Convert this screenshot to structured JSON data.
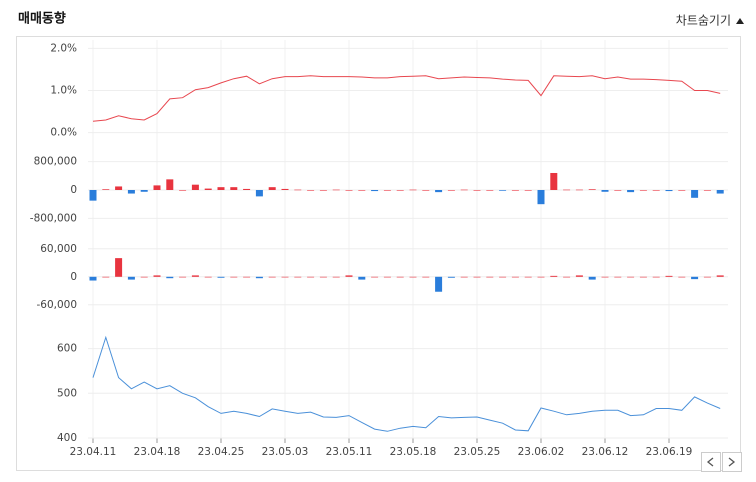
{
  "title": "매매동향",
  "toggle_label": "차트숨기기",
  "chart_data": [
    {
      "type": "line",
      "color": "#e8474f",
      "grid": true,
      "ylim": [
        -0.2,
        2.2
      ],
      "yticks": [
        {
          "value": 2,
          "label": "2.0%"
        },
        {
          "value": 1,
          "label": "1.0%"
        },
        {
          "value": 0,
          "label": "0.0%"
        }
      ],
      "values": [
        0.27,
        0.3,
        0.4,
        0.33,
        0.3,
        0.45,
        0.8,
        0.83,
        1.02,
        1.07,
        1.18,
        1.28,
        1.34,
        1.16,
        1.28,
        1.33,
        1.33,
        1.35,
        1.33,
        1.33,
        1.33,
        1.32,
        1.3,
        1.3,
        1.33,
        1.34,
        1.35,
        1.28,
        1.3,
        1.32,
        1.31,
        1.3,
        1.27,
        1.25,
        1.24,
        0.88,
        1.35,
        1.34,
        1.33,
        1.35,
        1.28,
        1.32,
        1.27,
        1.27,
        1.26,
        1.24,
        1.22,
        1.0,
        1.0,
        0.93
      ]
    },
    {
      "type": "bar",
      "up_color": "#e8343f",
      "down_color": "#2a7ddb",
      "grid": true,
      "ylim": [
        -1100000,
        1100000
      ],
      "yticks": [
        {
          "value": 800000,
          "label": "800,000"
        },
        0,
        {
          "value": -800000,
          "label": "-800,000"
        }
      ],
      "values": [
        -300000,
        20000,
        100000,
        -100000,
        -50000,
        130000,
        300000,
        0,
        150000,
        40000,
        80000,
        80000,
        30000,
        -180000,
        80000,
        30000,
        10000,
        0,
        0,
        10000,
        0,
        0,
        -30000,
        0,
        0,
        10000,
        0,
        -60000,
        0,
        10000,
        0,
        0,
        -20000,
        0,
        0,
        -400000,
        480000,
        10000,
        10000,
        20000,
        -50000,
        0,
        -60000,
        0,
        0,
        -30000,
        0,
        -220000,
        0,
        -100000
      ]
    },
    {
      "type": "bar",
      "up_color": "#e8343f",
      "down_color": "#2a7ddb",
      "grid": true,
      "ylim": [
        -84000,
        81000
      ],
      "yticks": [
        {
          "value": 60000,
          "label": "60,000"
        },
        0,
        {
          "value": -60000,
          "label": "-60,000"
        }
      ],
      "values": [
        -8000,
        0,
        40000,
        -6000,
        0,
        3000,
        -3000,
        0,
        3000,
        0,
        -2000,
        0,
        0,
        -3000,
        0,
        0,
        0,
        0,
        0,
        0,
        3000,
        -6000,
        0,
        0,
        0,
        0,
        0,
        -32000,
        -2000,
        0,
        0,
        0,
        0,
        0,
        0,
        0,
        2000,
        0,
        3000,
        -6000,
        0,
        0,
        0,
        0,
        0,
        2000,
        0,
        -5000,
        0,
        3000
      ]
    },
    {
      "type": "line",
      "color": "#4a90d9",
      "grid": true,
      "ylim": [
        400,
        655
      ],
      "yticks": [
        400,
        500,
        600
      ],
      "categories": [
        "23.04.11",
        null,
        null,
        null,
        null,
        "23.04.18",
        null,
        null,
        null,
        null,
        "23.04.25",
        null,
        null,
        null,
        null,
        "23.05.03",
        null,
        null,
        null,
        null,
        "23.05.11",
        null,
        null,
        null,
        null,
        "23.05.18",
        null,
        null,
        null,
        null,
        "23.05.25",
        null,
        null,
        null,
        null,
        "23.06.02",
        null,
        null,
        null,
        null,
        "23.06.12",
        null,
        null,
        null,
        null,
        "23.06.19",
        null,
        null,
        null,
        null
      ],
      "values": [
        535,
        625,
        535,
        510,
        525,
        510,
        517,
        500,
        490,
        470,
        455,
        460,
        455,
        448,
        465,
        460,
        455,
        458,
        447,
        446,
        450,
        435,
        420,
        415,
        422,
        426,
        423,
        448,
        445,
        446,
        447,
        440,
        433,
        418,
        416,
        467,
        460,
        452,
        455,
        460,
        462,
        462,
        450,
        452,
        466,
        466,
        462,
        492,
        478,
        466
      ]
    }
  ]
}
